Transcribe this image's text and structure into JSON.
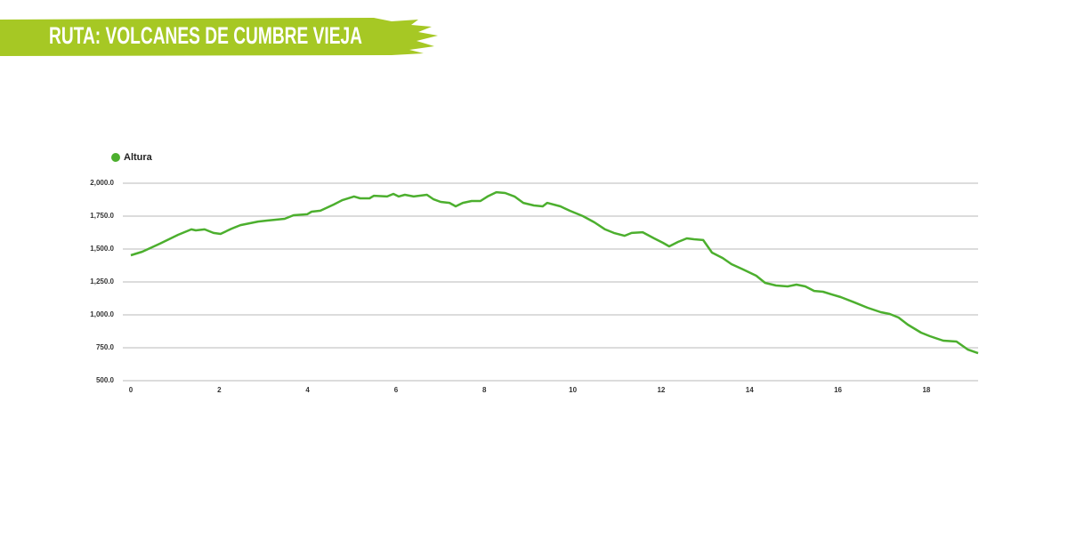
{
  "chart_data": {
    "type": "line",
    "title": "RUTA: VOLCANES DE CUMBRE VIEJA",
    "x": [
      0,
      0.26,
      0.66,
      1.07,
      1.37,
      1.47,
      1.67,
      1.87,
      2.03,
      2.28,
      2.48,
      2.88,
      3.08,
      3.48,
      3.68,
      3.99,
      4.09,
      4.29,
      4.59,
      4.79,
      5.05,
      5.19,
      5.4,
      5.5,
      5.8,
      5.94,
      6.06,
      6.2,
      6.4,
      6.7,
      6.85,
      7.01,
      7.21,
      7.35,
      7.51,
      7.71,
      7.91,
      8.07,
      8.27,
      8.47,
      8.68,
      8.88,
      9.12,
      9.32,
      9.42,
      9.72,
      9.93,
      10.23,
      10.49,
      10.73,
      10.93,
      11.17,
      11.33,
      11.58,
      11.84,
      12.04,
      12.18,
      12.38,
      12.58,
      12.74,
      12.95,
      13.15,
      13.39,
      13.59,
      13.85,
      14.15,
      14.35,
      14.6,
      14.86,
      15.06,
      15.26,
      15.46,
      15.66,
      15.86,
      16.06,
      16.37,
      16.67,
      16.97,
      17.17,
      17.37,
      17.58,
      17.88,
      18.08,
      18.38,
      18.68,
      18.94,
      19.17
    ],
    "series": [
      {
        "name": "Altura",
        "color": "#4caf2e",
        "values": [
          1453,
          1480,
          1541,
          1608,
          1649,
          1642,
          1649,
          1622,
          1615,
          1655,
          1682,
          1709,
          1716,
          1730,
          1757,
          1764,
          1784,
          1791,
          1838,
          1872,
          1899,
          1885,
          1885,
          1905,
          1899,
          1919,
          1899,
          1912,
          1899,
          1912,
          1878,
          1858,
          1851,
          1824,
          1851,
          1865,
          1865,
          1899,
          1932,
          1926,
          1899,
          1851,
          1831,
          1824,
          1851,
          1824,
          1791,
          1750,
          1703,
          1649,
          1622,
          1601,
          1622,
          1628,
          1581,
          1547,
          1520,
          1554,
          1581,
          1574,
          1568,
          1473,
          1432,
          1385,
          1345,
          1297,
          1243,
          1223,
          1216,
          1230,
          1216,
          1182,
          1176,
          1155,
          1135,
          1095,
          1054,
          1020,
          1007,
          980,
          926,
          865,
          838,
          804,
          797,
          736,
          709
        ]
      }
    ],
    "xlim": [
      0,
      19.17
    ],
    "xticks": [
      0,
      2,
      4,
      6,
      8,
      10,
      12,
      14,
      16,
      18
    ],
    "ylim": [
      500,
      2000
    ],
    "yticks": [
      {
        "value": 500,
        "label": "500.0"
      },
      {
        "value": 750,
        "label": "750.0"
      },
      {
        "value": 1000,
        "label": "1,000.0"
      },
      {
        "value": 1250,
        "label": "1,250.0"
      },
      {
        "value": 1500,
        "label": "1,500.0"
      },
      {
        "value": 1750,
        "label": "1,750.0"
      },
      {
        "value": 2000,
        "label": "2,000.0"
      }
    ],
    "grid": true
  }
}
